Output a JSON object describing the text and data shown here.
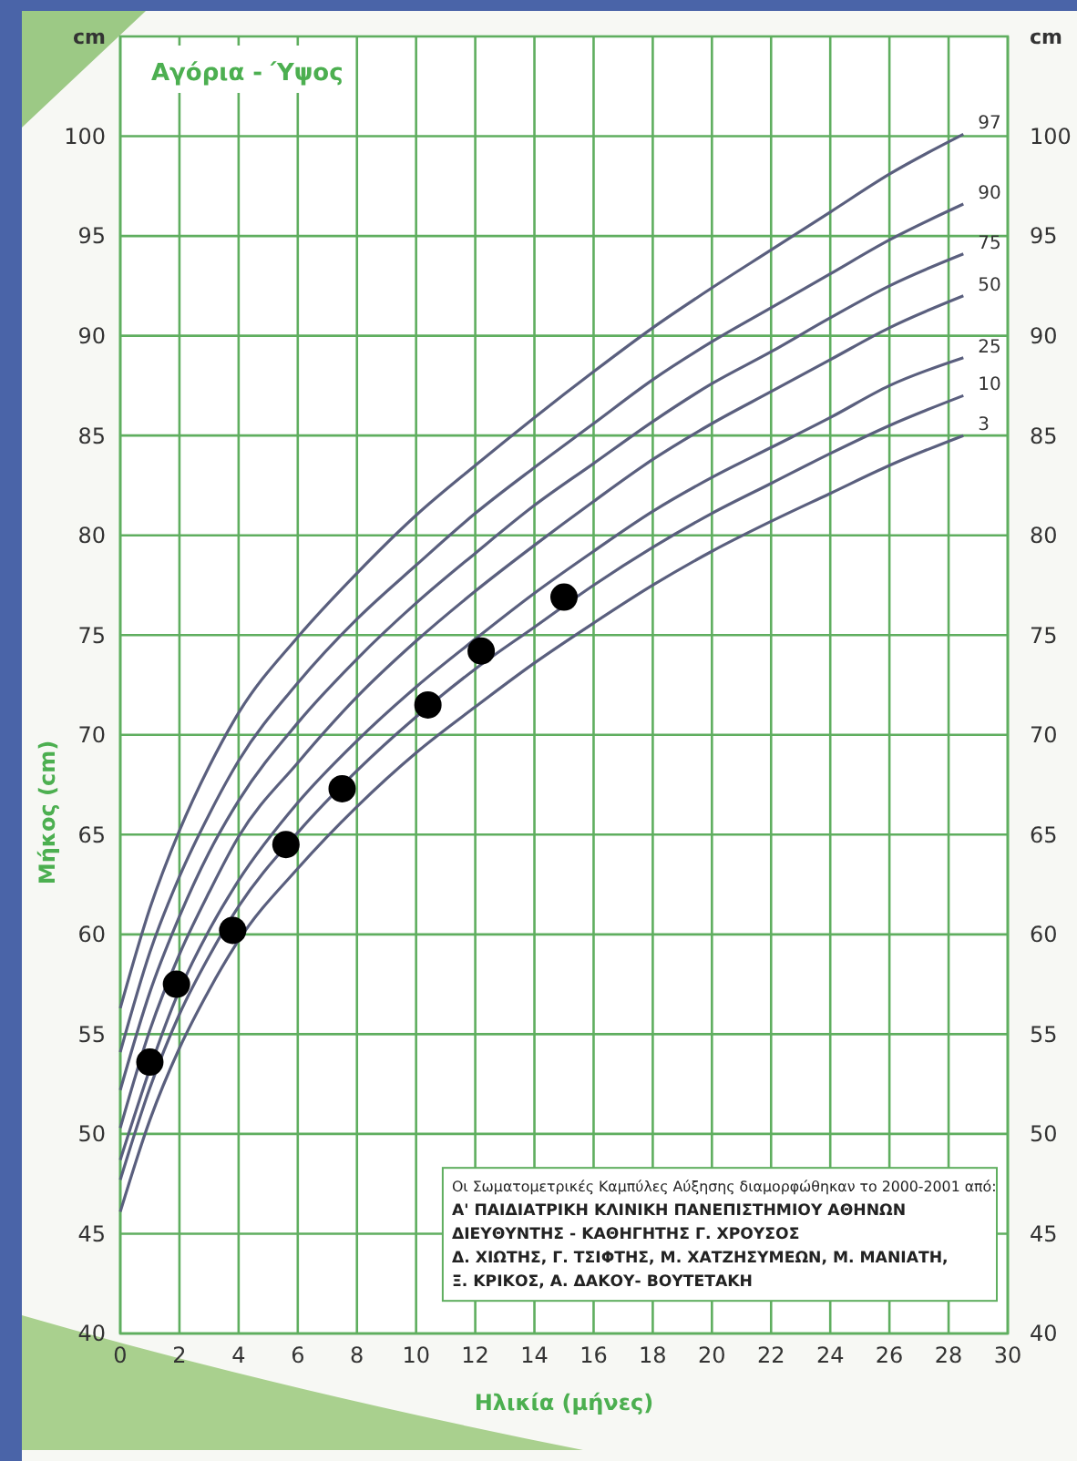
{
  "chart_data": {
    "type": "line",
    "title": "Αγόρια - Ύψος",
    "xlabel": "Ηλικία (μήνες)",
    "ylabel": "Μήκος (cm)",
    "y2label": "cm",
    "annotations": [
      "cm",
      "Οι Σωματομετρικές Καμπύλες Αύξησης διαμορφώθηκαν το 2000-2001 από:",
      "Α' ΠΑΙΔΙΑΤΡΙΚΗ ΚΛΙΝΙΚΗ ΠΑΝΕΠΙΣΤΗΜΙΟΥ ΑΘΗΝΩΝ",
      "ΔΙΕΥΘΥΝΤΗΣ - ΚΑΘΗΓΗΤΗΣ Γ. ΧΡΟΥΣΟΣ",
      "Δ. ΧΙΩΤΗΣ, Γ. ΤΣΙΦΤΗΣ, Μ. ΧΑΤΖΗΣΥΜΕΩΝ, Μ. ΜΑΝΙΑΤΗ,",
      "Ξ. ΚΡΙΚΟΣ, Α. ΔΑΚΟΥ- ΒΟΥΤΕΤΑΚΗ"
    ],
    "x": [
      0,
      1,
      2,
      3,
      4,
      6,
      8,
      10,
      12,
      14,
      16,
      18,
      20,
      22,
      24,
      26,
      28.5
    ],
    "series": [
      {
        "name": "97",
        "color": "#5a5f7e",
        "marker": "none",
        "values": [
          56.3,
          61.3,
          65.2,
          68.4,
          71.1,
          74.9,
          78.1,
          81.0,
          83.5,
          85.9,
          88.2,
          90.4,
          92.4,
          94.3,
          96.2,
          98.1,
          100.1
        ]
      },
      {
        "name": "90",
        "color": "#5a5f7e",
        "marker": "none",
        "values": [
          54.1,
          59.1,
          62.9,
          66.0,
          68.7,
          72.6,
          75.8,
          78.5,
          81.1,
          83.4,
          85.6,
          87.8,
          89.7,
          91.4,
          93.1,
          94.8,
          96.6
        ]
      },
      {
        "name": "75",
        "color": "#5a5f7e",
        "marker": "none",
        "values": [
          52.2,
          57.1,
          60.9,
          64.1,
          66.7,
          70.6,
          73.8,
          76.6,
          79.1,
          81.5,
          83.6,
          85.7,
          87.6,
          89.2,
          90.9,
          92.5,
          94.1
        ]
      },
      {
        "name": "50",
        "color": "#5a5f7e",
        "marker": "none",
        "values": [
          50.3,
          55.2,
          59.0,
          62.1,
          64.9,
          68.6,
          71.9,
          74.7,
          77.2,
          79.5,
          81.7,
          83.8,
          85.6,
          87.2,
          88.8,
          90.4,
          92.0
        ]
      },
      {
        "name": "25",
        "color": "#5a5f7e",
        "marker": "none",
        "values": [
          48.7,
          null,
          57.2,
          60.2,
          62.7,
          66.6,
          69.7,
          72.4,
          74.8,
          77.1,
          79.2,
          81.2,
          82.9,
          84.4,
          85.9,
          87.5,
          88.9
        ]
      },
      {
        "name": "10",
        "color": "#5a5f7e",
        "marker": "none",
        "values": [
          47.7,
          52.3,
          56.0,
          58.9,
          61.4,
          65.1,
          68.2,
          70.9,
          73.3,
          75.4,
          77.5,
          79.4,
          81.1,
          82.6,
          84.1,
          85.5,
          87.0
        ]
      },
      {
        "name": "3",
        "color": "#5a5f7e",
        "marker": "none",
        "values": [
          46.1,
          50.7,
          54.3,
          57.2,
          59.7,
          63.3,
          66.4,
          69.1,
          71.4,
          73.6,
          75.6,
          77.5,
          79.2,
          80.7,
          82.1,
          83.5,
          85.0
        ]
      },
      {
        "type": "scatter",
        "color": "#000000",
        "x": [
          1,
          1.9,
          3.8,
          5.6,
          7.5,
          10.4,
          12.2,
          15
        ],
        "values": [
          53.6,
          57.5,
          60.2,
          64.5,
          67.3,
          71.5,
          74.2,
          76.9
        ]
      }
    ],
    "marker": "circle",
    "xlim": [
      0,
      30
    ],
    "xticks": [
      0,
      2,
      4,
      6,
      8,
      10,
      12,
      14,
      16,
      18,
      20,
      22,
      24,
      26,
      28,
      30
    ],
    "ylim": [
      40,
      105
    ],
    "yticks": [
      40,
      45,
      50,
      55,
      60,
      65,
      70,
      75,
      80,
      85,
      90,
      95,
      100
    ],
    "y2lim": [
      40,
      105
    ],
    "y2ticks": [
      40,
      45,
      50,
      55,
      60,
      65,
      70,
      75,
      80,
      85,
      90,
      95,
      100
    ],
    "grid": true
  }
}
